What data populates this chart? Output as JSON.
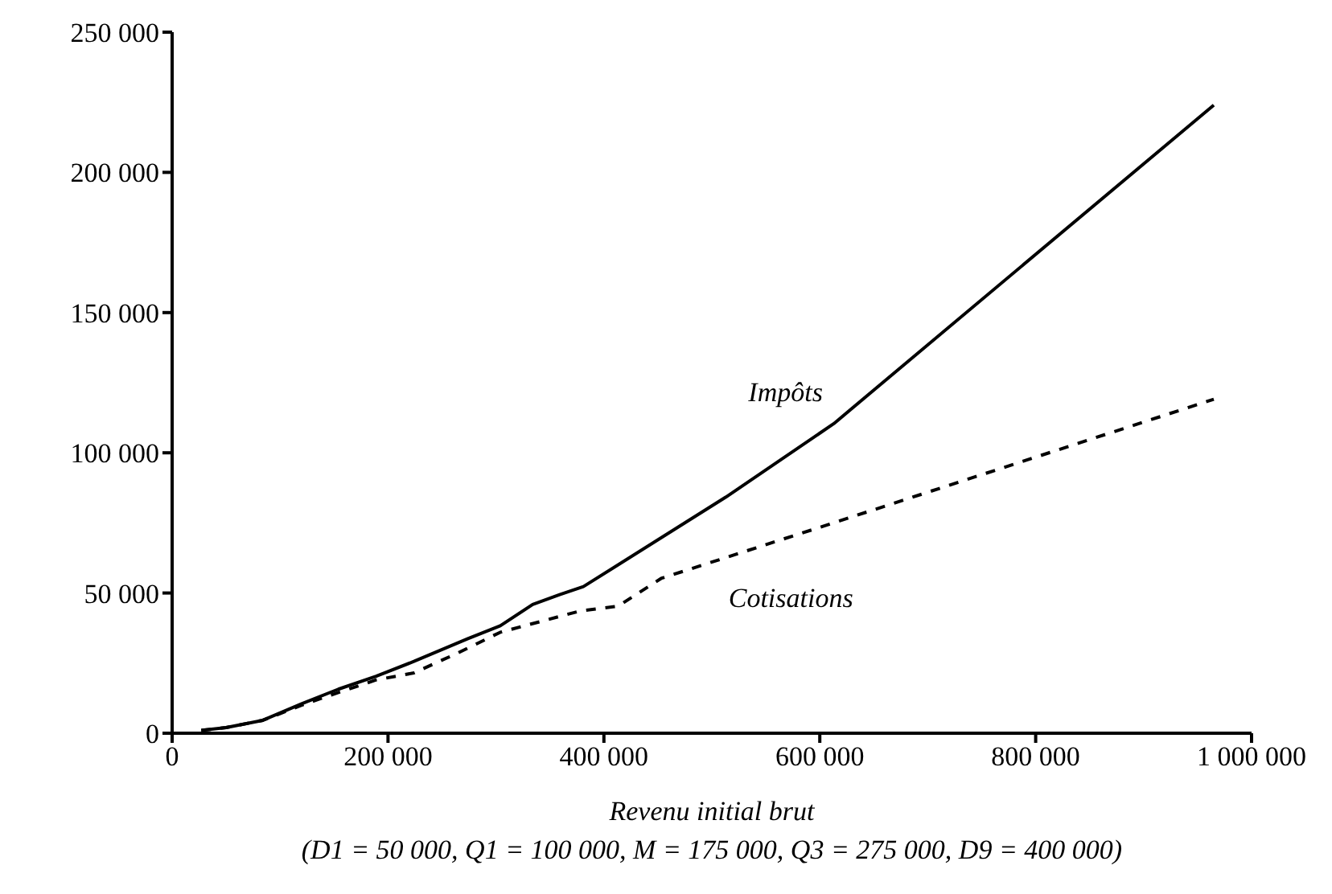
{
  "chart_data": {
    "type": "line",
    "xlabel": "Revenu initial brut",
    "annotations": [
      "(D1 = 50 000, Q1 = 100 000, M = 175 000, Q3 = 275 000, D9 = 400 000)"
    ],
    "xlim": [
      0,
      1000000
    ],
    "ylim": [
      0,
      250000
    ],
    "xticks": [
      0,
      {
        "value": 200000,
        "label": "200 000"
      },
      {
        "value": 400000,
        "label": "400 000"
      },
      {
        "value": 600000,
        "label": "600 000"
      },
      {
        "value": 800000,
        "label": "800 000"
      },
      {
        "value": 1000000,
        "label": "1 000 000"
      }
    ],
    "yticks": [
      0,
      {
        "value": 50000,
        "label": "50 000"
      },
      {
        "value": 100000,
        "label": "100 000"
      },
      {
        "value": 150000,
        "label": "150 000"
      },
      {
        "value": 200000,
        "label": "200 000"
      },
      {
        "value": 250000,
        "label": "250 000"
      }
    ],
    "marker": "none",
    "series": [
      {
        "name": "Impôts",
        "color": "#000000",
        "line_style": "solid",
        "x": [
          27000,
          50000,
          84000,
          120000,
          154000,
          189000,
          224000,
          274000,
          304000,
          334000,
          359000,
          381000,
          513000,
          613000,
          965000
        ],
        "values": [
          1000,
          2000,
          4600,
          10500,
          15700,
          20300,
          25600,
          33700,
          38300,
          45900,
          49400,
          52300,
          84200,
          110400,
          224000
        ]
      },
      {
        "name": "Cotisations",
        "color": "#000000",
        "line_style": "dashed",
        "x": [
          27000,
          50000,
          84000,
          120000,
          154000,
          189000,
          224000,
          264000,
          304000,
          378000,
          413000,
          453000,
          603000,
          965000
        ],
        "values": [
          1000,
          2000,
          4600,
          10000,
          14500,
          19000,
          21500,
          28500,
          36000,
          43600,
          45300,
          55200,
          73800,
          119100
        ]
      }
    ]
  }
}
